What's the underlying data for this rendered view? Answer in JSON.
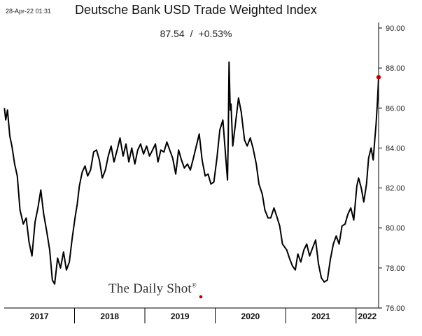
{
  "timestamp": "28-Apr-22 01:31",
  "chart_data": {
    "type": "line",
    "title": "Deutsche Bank USD Trade Weighted Index",
    "last_value": "87.54",
    "last_change": "+0.53%",
    "xlabel": "",
    "ylabel": "",
    "ylim": [
      76,
      90
    ],
    "yticks": [
      76,
      78,
      80,
      82,
      84,
      86,
      88,
      90
    ],
    "ytick_labels": [
      "76.00",
      "78.00",
      "80.00",
      "82.00",
      "84.00",
      "86.00",
      "88.00",
      "90.00"
    ],
    "y_axis_side": "right",
    "x_axis_range": [
      "2017-01-01",
      "2022-04-28"
    ],
    "x_year_labels": [
      "2017",
      "2018",
      "2019",
      "2020",
      "2021",
      "2022"
    ],
    "grid": false,
    "legend": "none",
    "line_color": "#000000",
    "end_marker_color": "#c00000",
    "series": [
      {
        "x": [
          "2017-01-02",
          "2017-01-09",
          "2017-01-18",
          "2017-01-30",
          "2017-02-10",
          "2017-02-24",
          "2017-03-10",
          "2017-03-24",
          "2017-04-10",
          "2017-04-25",
          "2017-05-10",
          "2017-05-25",
          "2017-06-10",
          "2017-06-25",
          "2017-07-10",
          "2017-07-25",
          "2017-08-10",
          "2017-08-25",
          "2017-09-08",
          "2017-09-20",
          "2017-10-05",
          "2017-10-20",
          "2017-11-05",
          "2017-11-20",
          "2017-12-05",
          "2017-12-20",
          "2018-01-05",
          "2018-01-15",
          "2018-01-26",
          "2018-02-10",
          "2018-02-25",
          "2018-03-10",
          "2018-03-25",
          "2018-04-10",
          "2018-04-25",
          "2018-05-10",
          "2018-05-25",
          "2018-06-10",
          "2018-06-25",
          "2018-07-10",
          "2018-07-25",
          "2018-08-10",
          "2018-08-25",
          "2018-09-10",
          "2018-09-25",
          "2018-10-10",
          "2018-10-25",
          "2018-11-10",
          "2018-11-25",
          "2018-12-10",
          "2018-12-25",
          "2019-01-10",
          "2019-01-25",
          "2019-02-10",
          "2019-02-25",
          "2019-03-10",
          "2019-03-25",
          "2019-04-10",
          "2019-04-25",
          "2019-05-10",
          "2019-05-25",
          "2019-06-10",
          "2019-06-25",
          "2019-07-10",
          "2019-07-25",
          "2019-08-10",
          "2019-08-25",
          "2019-09-10",
          "2019-09-25",
          "2019-10-10",
          "2019-10-25",
          "2019-11-10",
          "2019-11-25",
          "2019-12-10",
          "2019-12-25",
          "2020-01-10",
          "2020-01-25",
          "2020-02-10",
          "2020-02-24",
          "2020-03-05",
          "2020-03-09",
          "2020-03-13",
          "2020-03-19",
          "2020-03-23",
          "2020-04-01",
          "2020-04-15",
          "2020-05-01",
          "2020-05-15",
          "2020-06-01",
          "2020-06-15",
          "2020-07-01",
          "2020-07-15",
          "2020-08-01",
          "2020-08-15",
          "2020-09-01",
          "2020-09-15",
          "2020-10-01",
          "2020-10-15",
          "2020-11-01",
          "2020-11-15",
          "2020-12-01",
          "2020-12-15",
          "2021-01-06",
          "2021-01-20",
          "2021-02-05",
          "2021-02-20",
          "2021-03-05",
          "2021-03-20",
          "2021-04-05",
          "2021-04-20",
          "2021-05-05",
          "2021-05-20",
          "2021-06-05",
          "2021-06-20",
          "2021-07-05",
          "2021-07-20",
          "2021-08-05",
          "2021-08-20",
          "2021-09-05",
          "2021-09-20",
          "2021-10-05",
          "2021-10-20",
          "2021-11-05",
          "2021-11-20",
          "2021-12-05",
          "2021-12-20",
          "2022-01-05",
          "2022-01-14",
          "2022-01-28",
          "2022-02-10",
          "2022-02-24",
          "2022-03-07",
          "2022-03-20",
          "2022-03-31",
          "2022-04-08",
          "2022-04-15",
          "2022-04-22",
          "2022-04-28"
        ],
        "y": [
          86.0,
          85.4,
          85.9,
          84.6,
          84.1,
          83.2,
          82.6,
          80.9,
          80.2,
          80.5,
          79.3,
          78.6,
          80.3,
          81.0,
          81.9,
          80.7,
          79.8,
          78.9,
          77.4,
          77.2,
          78.5,
          78.0,
          78.8,
          77.9,
          78.3,
          79.5,
          80.6,
          81.2,
          82.1,
          82.8,
          83.1,
          82.6,
          82.9,
          83.8,
          83.9,
          83.4,
          82.5,
          82.9,
          83.6,
          84.1,
          83.3,
          83.9,
          84.5,
          83.6,
          84.2,
          83.3,
          84.0,
          83.2,
          83.9,
          84.2,
          83.7,
          84.1,
          83.6,
          83.9,
          84.2,
          83.3,
          83.9,
          83.8,
          84.3,
          83.9,
          83.5,
          82.7,
          83.9,
          83.4,
          83.0,
          83.2,
          82.9,
          83.5,
          84.1,
          84.7,
          83.4,
          82.6,
          82.7,
          82.2,
          82.3,
          83.5,
          84.9,
          85.4,
          83.6,
          82.4,
          84.7,
          88.3,
          85.9,
          86.2,
          84.1,
          85.2,
          86.5,
          85.8,
          84.4,
          84.1,
          84.5,
          84.0,
          83.2,
          82.2,
          81.7,
          80.9,
          80.5,
          80.5,
          81.0,
          80.6,
          80.1,
          79.2,
          78.9,
          78.5,
          78.1,
          77.9,
          78.7,
          78.3,
          78.9,
          79.2,
          78.6,
          79.0,
          79.4,
          78.2,
          77.5,
          77.3,
          77.4,
          78.4,
          79.2,
          79.6,
          79.2,
          80.1,
          80.2,
          80.7,
          81.0,
          80.4,
          82.1,
          82.5,
          82.0,
          81.3,
          82.2,
          83.5,
          84.0,
          83.4,
          84.4,
          85.2,
          86.3,
          87.54
        ]
      }
    ]
  }
}
